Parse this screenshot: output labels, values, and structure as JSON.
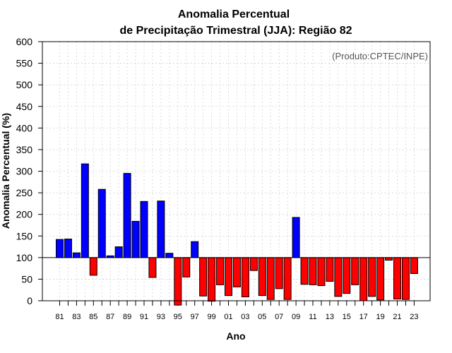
{
  "chart_data": {
    "type": "bar",
    "title_line1": "Anomalia Percentual",
    "title_line2": "de Precipitação Trimestral (JJA): Região 82",
    "xlabel": "Ano",
    "ylabel": "Anomalia Percentual (%)",
    "credit": "(Produto:CPTEC/INPE)",
    "ylim": [
      0,
      600
    ],
    "yticks": [
      0,
      50,
      100,
      150,
      200,
      250,
      300,
      350,
      400,
      450,
      500,
      550,
      600
    ],
    "ytick_labels": [
      "0",
      "50",
      "100",
      "150",
      "200",
      "250",
      "300",
      "350",
      "400",
      "450",
      "500",
      "550",
      "600"
    ],
    "baseline": 100,
    "grid": true,
    "categories": [
      "81",
      "82",
      "83",
      "84",
      "85",
      "86",
      "87",
      "88",
      "89",
      "90",
      "91",
      "92",
      "93",
      "94",
      "95",
      "96",
      "97",
      "98",
      "99",
      "00",
      "01",
      "02",
      "03",
      "04",
      "05",
      "06",
      "07",
      "08",
      "09",
      "10",
      "11",
      "12",
      "13",
      "14",
      "15",
      "16",
      "17",
      "18",
      "19",
      "20",
      "21",
      "22",
      "23"
    ],
    "xtick_labels": [
      "81",
      "",
      "83",
      "",
      "85",
      "",
      "87",
      "",
      "89",
      "",
      "91",
      "",
      "93",
      "",
      "95",
      "",
      "97",
      "",
      "99",
      "",
      "01",
      "",
      "03",
      "",
      "05",
      "",
      "07",
      "",
      "09",
      "",
      "11",
      "",
      "13",
      "",
      "15",
      "",
      "17",
      "",
      "19",
      "",
      "21",
      "",
      "23"
    ],
    "values": [
      142,
      143,
      111,
      317,
      59,
      258,
      104,
      125,
      295,
      184,
      230,
      54,
      231,
      110,
      -10,
      55,
      137,
      11,
      -1,
      37,
      12,
      32,
      9,
      70,
      12,
      3,
      28,
      3,
      193,
      38,
      37,
      35,
      45,
      10,
      17,
      37,
      0,
      10,
      2,
      94,
      4,
      3,
      63
    ],
    "colors": {
      "above": "#0000ff",
      "below": "#ff0000",
      "edge": "#000000",
      "grid": "#d3d3d3"
    }
  }
}
